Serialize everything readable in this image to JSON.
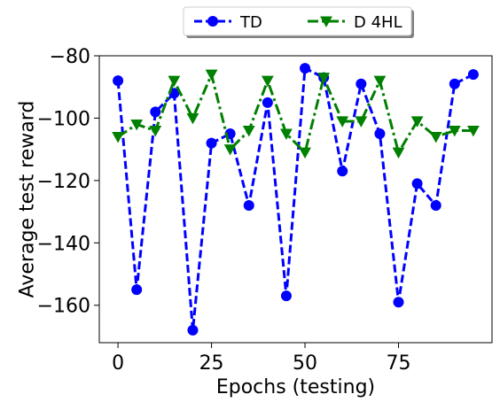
{
  "chart_data": {
    "type": "line",
    "xlabel": "Epochs (testing)",
    "ylabel": "Average test reward",
    "xlim": [
      -5,
      100
    ],
    "ylim": [
      -172,
      -80
    ],
    "xticks": [
      0,
      25,
      50,
      75
    ],
    "yticks": [
      -160,
      -140,
      -120,
      -100,
      -80
    ],
    "xtick_labels": [
      "0",
      "25",
      "50",
      "75"
    ],
    "ytick_labels": [
      "−160",
      "−140",
      "−120",
      "−100",
      "−80"
    ],
    "grid": false,
    "legend": {
      "placement": "top-center-outside",
      "columns": 2
    },
    "x": [
      0,
      5,
      10,
      15,
      20,
      25,
      30,
      35,
      40,
      45,
      50,
      55,
      60,
      65,
      70,
      75,
      80,
      85,
      90,
      95
    ],
    "series": [
      {
        "name": "TD",
        "color": "#0000ff",
        "line_style": "dashed",
        "marker": "circle",
        "values": [
          -88,
          -155,
          -98,
          -92,
          -168,
          -108,
          -105,
          -128,
          -95,
          -157,
          -84,
          -87,
          -117,
          -89,
          -105,
          -159,
          -121,
          -128,
          -89,
          -86
        ]
      },
      {
        "name": "D 4HL",
        "color": "#008000",
        "line_style": "dashdot",
        "marker": "triangle-down",
        "values": [
          -106,
          -102,
          -104,
          -88,
          -100,
          -86,
          -110,
          -104,
          -88,
          -105,
          -111,
          -87,
          -101,
          -101,
          -88,
          -111,
          -101,
          -106,
          -104,
          -104
        ]
      }
    ]
  }
}
